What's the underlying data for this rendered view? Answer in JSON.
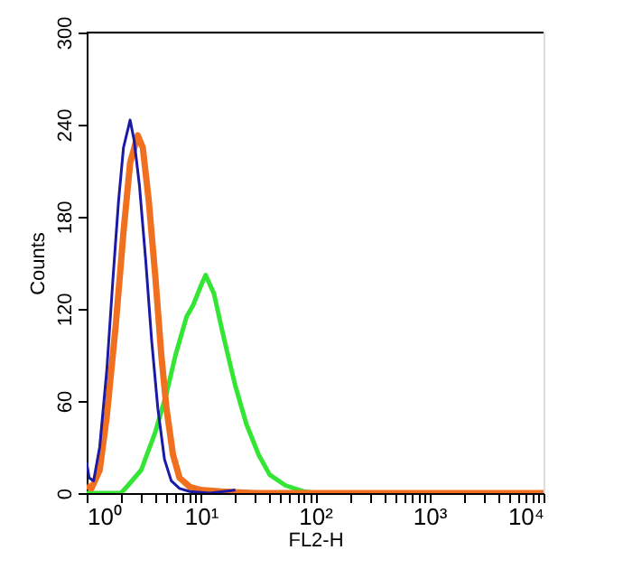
{
  "chart_data": {
    "type": "line",
    "xlabel": "FL2-H",
    "ylabel": "Counts",
    "log": "x",
    "grid": false,
    "marker": "none",
    "line_style": "solid",
    "xlim": [
      1,
      10000
    ],
    "ylim": [
      0,
      300
    ],
    "xticks": [
      {
        "value": 1,
        "label": "10⁰"
      },
      {
        "value": 2,
        "label": null
      },
      {
        "value": 3,
        "label": null
      },
      {
        "value": 4,
        "label": null
      },
      {
        "value": 5,
        "label": null
      },
      {
        "value": 6,
        "label": null
      },
      {
        "value": 7,
        "label": null
      },
      {
        "value": 8,
        "label": null
      },
      {
        "value": 9,
        "label": null
      },
      {
        "value": 10,
        "label": "10¹"
      },
      {
        "value": 20,
        "label": null
      },
      {
        "value": 30,
        "label": null
      },
      {
        "value": 40,
        "label": null
      },
      {
        "value": 50,
        "label": null
      },
      {
        "value": 60,
        "label": null
      },
      {
        "value": 70,
        "label": null
      },
      {
        "value": 80,
        "label": null
      },
      {
        "value": 90,
        "label": null
      },
      {
        "value": 100,
        "label": "10²"
      },
      {
        "value": 200,
        "label": null
      },
      {
        "value": 300,
        "label": null
      },
      {
        "value": 400,
        "label": null
      },
      {
        "value": 500,
        "label": null
      },
      {
        "value": 600,
        "label": null
      },
      {
        "value": 700,
        "label": null
      },
      {
        "value": 800,
        "label": null
      },
      {
        "value": 900,
        "label": null
      },
      {
        "value": 1000,
        "label": "10³"
      },
      {
        "value": 2000,
        "label": null
      },
      {
        "value": 3000,
        "label": null
      },
      {
        "value": 4000,
        "label": null
      },
      {
        "value": 5000,
        "label": null
      },
      {
        "value": 6000,
        "label": null
      },
      {
        "value": 7000,
        "label": null
      },
      {
        "value": 8000,
        "label": null
      },
      {
        "value": 9000,
        "label": null
      },
      {
        "value": 10000,
        "label": "10⁴"
      }
    ],
    "yticks": [
      0,
      60,
      120,
      180,
      240,
      300
    ],
    "series": [
      {
        "color": "#1a1aa6",
        "x": [
          1.0,
          1.05,
          1.15,
          1.3,
          1.5,
          1.7,
          1.9,
          2.1,
          2.4,
          2.6,
          2.9,
          3.3,
          3.7,
          4.2,
          4.8,
          5.5,
          6.5,
          8,
          12,
          20
        ],
        "values": [
          20,
          10,
          8,
          30,
          80,
          140,
          190,
          225,
          243,
          230,
          200,
          150,
          100,
          55,
          22,
          8,
          3,
          1,
          0,
          2
        ]
      },
      {
        "color": "#f07020",
        "x": [
          1.0,
          1.1,
          1.3,
          1.5,
          1.8,
          2.1,
          2.4,
          2.8,
          3.1,
          3.5,
          4,
          4.5,
          5,
          5.7,
          6.5,
          8,
          10,
          15,
          30,
          10000
        ],
        "values": [
          5,
          3,
          15,
          50,
          110,
          170,
          215,
          233,
          225,
          190,
          140,
          90,
          55,
          25,
          10,
          4,
          2,
          1,
          0,
          0
        ]
      },
      {
        "color": "#33e633",
        "x": [
          1,
          2,
          2.3,
          3,
          4,
          5,
          6,
          7.5,
          8.5,
          10,
          11,
          13,
          16,
          20,
          25,
          32,
          40,
          55,
          80,
          100,
          10000
        ],
        "values": [
          0,
          0,
          5,
          15,
          40,
          65,
          90,
          115,
          122,
          135,
          142,
          130,
          100,
          70,
          45,
          25,
          12,
          5,
          1,
          0,
          0
        ]
      }
    ]
  }
}
